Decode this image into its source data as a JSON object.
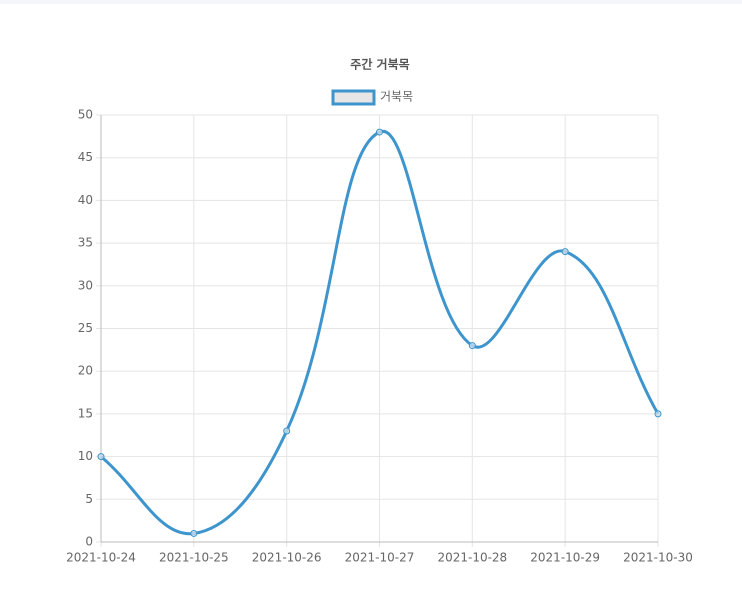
{
  "chart_data": {
    "type": "line",
    "title": "주간 거북목",
    "categories": [
      "2021-10-24",
      "2021-10-25",
      "2021-10-26",
      "2021-10-27",
      "2021-10-28",
      "2021-10-29",
      "2021-10-30"
    ],
    "series": [
      {
        "name": "거북목",
        "color": "#3e95cd",
        "values": [
          10,
          1,
          13,
          48,
          23,
          34,
          15
        ]
      }
    ],
    "ylim": [
      0,
      50
    ],
    "yticks": [
      0,
      5,
      10,
      15,
      20,
      25,
      30,
      35,
      40,
      45,
      50
    ],
    "grid": true,
    "smooth": true
  }
}
